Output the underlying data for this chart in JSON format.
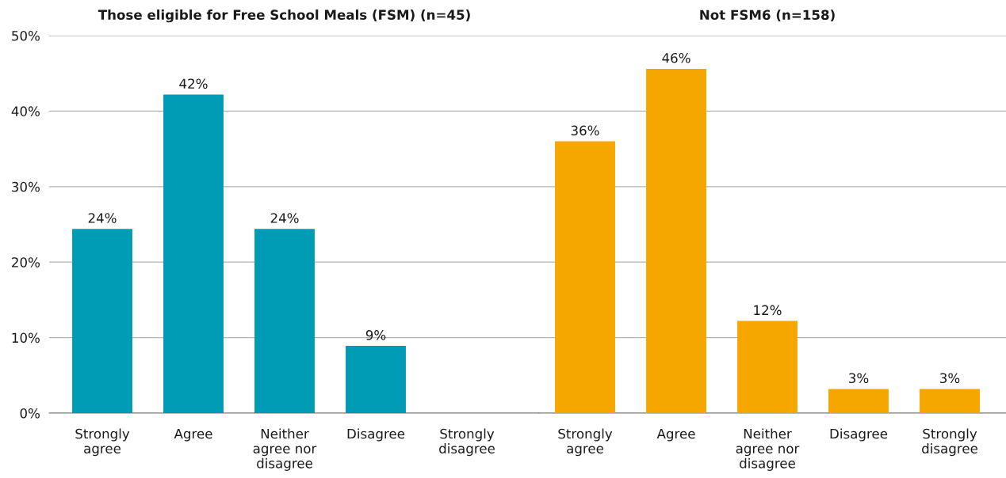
{
  "chart_data": [
    {
      "type": "bar",
      "title": "Those eligible for Free School Meals (FSM) (n=45)",
      "categories": [
        "Strongly agree",
        "Agree",
        "Neither agree nor disagree",
        "Disagree",
        "Strongly disagree"
      ],
      "values": [
        24.4,
        42.2,
        24.4,
        8.9,
        0
      ],
      "value_labels": [
        "24%",
        "42%",
        "24%",
        "9%",
        null
      ],
      "color": "#009bb4",
      "ylim": [
        0,
        50
      ],
      "yticks": [
        {
          "value": 0,
          "label": "0%"
        },
        {
          "value": 10,
          "label": "10%"
        },
        {
          "value": 20,
          "label": "20%"
        },
        {
          "value": 30,
          "label": "30%"
        },
        {
          "value": 40,
          "label": "40%"
        },
        {
          "value": 50,
          "label": "50%"
        }
      ],
      "grid": "y"
    },
    {
      "type": "bar",
      "title": "Not FSM6 (n=158)",
      "categories": [
        "Strongly agree",
        "Agree",
        "Neither agree nor disagree",
        "Disagree",
        "Strongly disagree"
      ],
      "values": [
        36.0,
        45.6,
        12.2,
        3.2,
        3.2
      ],
      "value_labels": [
        "36%",
        "46%",
        "12%",
        "3%",
        "3%"
      ],
      "color": "#f5a700",
      "ylim": [
        0,
        50
      ],
      "grid": "y",
      "tick_labels": "x"
    }
  ]
}
